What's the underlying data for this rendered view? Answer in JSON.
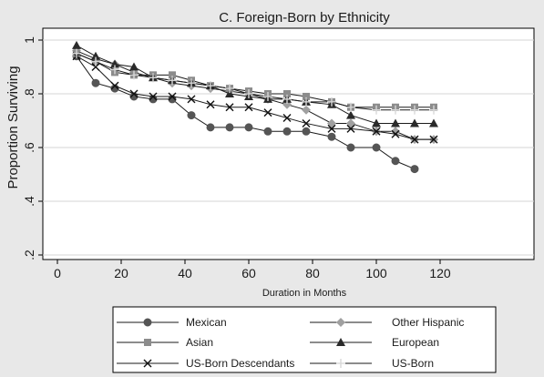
{
  "chart_data": {
    "type": "line",
    "title": "C. Foreign-Born by Ethnicity",
    "xlabel": "Duration in Months",
    "ylabel": "Proportion Surviving",
    "xlim": [
      0,
      145
    ],
    "ylim": [
      0.2,
      1.0
    ],
    "xticks": [
      0,
      20,
      40,
      60,
      80,
      100,
      120
    ],
    "xtick_labels": [
      "0",
      "20",
      "40",
      "60",
      "80",
      "100",
      "120"
    ],
    "yticks": [
      0.2,
      0.4,
      0.6,
      0.8,
      1.0
    ],
    "ytick_labels": [
      ".2",
      ".4",
      ".6",
      ".8",
      "1"
    ],
    "grid": "horizontal",
    "legend_position": "bottom",
    "series": [
      {
        "name": "Mexican",
        "marker": "circle",
        "color": "#555555",
        "x": [
          6,
          12,
          18,
          24,
          30,
          36,
          42,
          48,
          54,
          60,
          66,
          72,
          78,
          86,
          92,
          100,
          106,
          112
        ],
        "y": [
          0.94,
          0.84,
          0.82,
          0.79,
          0.78,
          0.78,
          0.72,
          0.675,
          0.675,
          0.675,
          0.66,
          0.66,
          0.66,
          0.64,
          0.6,
          0.6,
          0.55,
          0.52
        ]
      },
      {
        "name": "Other Hispanic",
        "marker": "diamond",
        "color": "#a0a0a0",
        "x": [
          6,
          12,
          18,
          24,
          30,
          36,
          42,
          48,
          54,
          60,
          66,
          72,
          78,
          86,
          92,
          100,
          106,
          112,
          118
        ],
        "y": [
          0.96,
          0.93,
          0.91,
          0.88,
          0.86,
          0.84,
          0.83,
          0.82,
          0.81,
          0.8,
          0.78,
          0.76,
          0.74,
          0.69,
          0.69,
          0.66,
          0.66,
          0.63,
          0.63
        ]
      },
      {
        "name": "Asian",
        "marker": "square",
        "color": "#8c8c8c",
        "x": [
          6,
          12,
          18,
          24,
          30,
          36,
          42,
          48,
          54,
          60,
          66,
          72,
          78,
          86,
          92,
          100,
          106,
          112,
          118
        ],
        "y": [
          0.95,
          0.92,
          0.88,
          0.87,
          0.87,
          0.87,
          0.85,
          0.83,
          0.82,
          0.81,
          0.8,
          0.8,
          0.79,
          0.77,
          0.75,
          0.75,
          0.75,
          0.75,
          0.75
        ]
      },
      {
        "name": "European",
        "marker": "triangle",
        "color": "#2a2a2a",
        "x": [
          6,
          12,
          18,
          24,
          30,
          36,
          42,
          48,
          54,
          60,
          66,
          72,
          78,
          86,
          92,
          100,
          106,
          112,
          118
        ],
        "y": [
          0.98,
          0.94,
          0.91,
          0.9,
          0.86,
          0.85,
          0.84,
          0.83,
          0.8,
          0.79,
          0.78,
          0.78,
          0.77,
          0.76,
          0.72,
          0.69,
          0.69,
          0.69,
          0.69
        ]
      },
      {
        "name": "US-Born Descendants",
        "marker": "x",
        "color": "#111111",
        "x": [
          6,
          12,
          18,
          24,
          30,
          36,
          42,
          48,
          54,
          60,
          66,
          72,
          78,
          86,
          92,
          100,
          106,
          112,
          118
        ],
        "y": [
          0.94,
          0.9,
          0.83,
          0.8,
          0.79,
          0.79,
          0.78,
          0.76,
          0.75,
          0.75,
          0.73,
          0.71,
          0.69,
          0.67,
          0.67,
          0.66,
          0.65,
          0.63,
          0.63
        ]
      },
      {
        "name": "US-Born",
        "marker": "plus",
        "color": "#d8d8d8",
        "x": [
          6,
          12,
          18,
          24,
          30,
          36,
          42,
          48,
          54,
          60,
          66,
          72,
          78,
          86,
          92,
          100,
          106,
          112,
          118
        ],
        "y": [
          0.95,
          0.92,
          0.89,
          0.87,
          0.86,
          0.85,
          0.84,
          0.83,
          0.82,
          0.8,
          0.79,
          0.78,
          0.77,
          0.77,
          0.75,
          0.74,
          0.74,
          0.74,
          0.74
        ]
      }
    ]
  }
}
